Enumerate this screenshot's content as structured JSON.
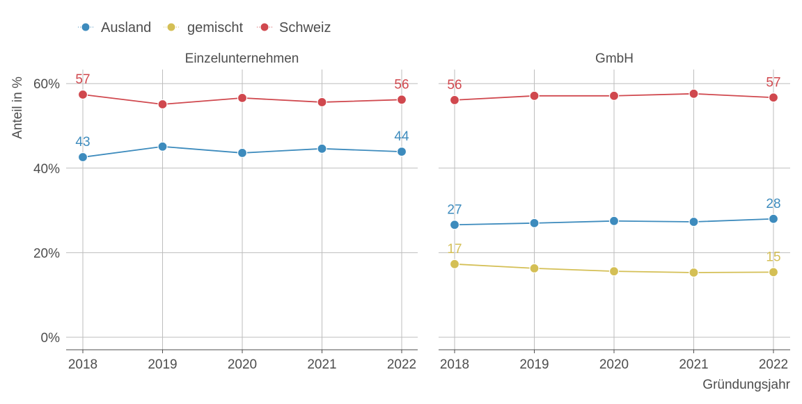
{
  "chart_data": {
    "type": "line",
    "legend": {
      "position": "top-left",
      "entries": [
        "Ausland",
        "gemischt",
        "Schweiz"
      ]
    },
    "colors": {
      "Ausland": "#3d8bbd",
      "gemischt": "#d4bf55",
      "Schweiz": "#d0484e"
    },
    "ylabel": "Anteil in %",
    "xlabel": "Gründungsjahr",
    "ylim": [
      -3,
      63
    ],
    "yticks": [
      0,
      20,
      40,
      60
    ],
    "ytick_labels": [
      "0%",
      "20%",
      "40%",
      "60%"
    ],
    "x": [
      2018,
      2019,
      2020,
      2021,
      2022
    ],
    "xtick_labels": [
      "2018",
      "2019",
      "2020",
      "2021",
      "2022"
    ],
    "grid": true,
    "panels": [
      {
        "title": "Einzelunternehmen",
        "series": [
          {
            "name": "Ausland",
            "values": [
              42.6,
              45.1,
              43.6,
              44.6,
              43.9
            ]
          },
          {
            "name": "Schweiz",
            "values": [
              57.4,
              55.1,
              56.6,
              55.6,
              56.2
            ]
          }
        ]
      },
      {
        "title": "GmbH",
        "series": [
          {
            "name": "Ausland",
            "values": [
              26.6,
              27.0,
              27.5,
              27.3,
              28.0
            ]
          },
          {
            "name": "gemischt",
            "values": [
              17.3,
              16.3,
              15.6,
              15.3,
              15.4
            ]
          },
          {
            "name": "Schweiz",
            "values": [
              56.1,
              57.1,
              57.1,
              57.6,
              56.7
            ]
          }
        ]
      }
    ]
  }
}
